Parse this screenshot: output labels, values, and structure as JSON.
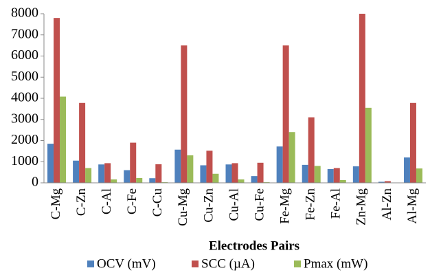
{
  "chart_data": {
    "type": "bar",
    "x_label": "Electrodes Pairs",
    "categories": [
      "C-Mg",
      "C-Zn",
      "C-Al",
      "C-Fe",
      "C-Cu",
      "Cu-Mg",
      "Cu-Zn",
      "Cu-Al",
      "Cu-Fe",
      "Fe-Mg",
      "Fe-Zn",
      "Fe-Al",
      "Zn-Mg",
      "Al-Zn",
      "Al-Mg"
    ],
    "series": [
      {
        "name": "OCV (mV)",
        "color": "#4f81bd",
        "values": [
          1850,
          1050,
          870,
          600,
          220,
          1570,
          830,
          870,
          320,
          1720,
          850,
          650,
          780,
          50,
          1200
        ]
      },
      {
        "name": "SCC (µA)",
        "color": "#c0504d",
        "values": [
          7800,
          3780,
          930,
          1900,
          880,
          6500,
          1520,
          930,
          950,
          6500,
          3100,
          700,
          8000,
          80,
          3780
        ]
      },
      {
        "name": "Pmax (mW)",
        "color": "#9bbb59",
        "values": [
          4080,
          700,
          160,
          230,
          30,
          1300,
          430,
          160,
          30,
          2400,
          800,
          130,
          3550,
          10,
          680
        ]
      }
    ],
    "ylim": [
      0,
      8000
    ],
    "yticks": [
      0,
      1000,
      2000,
      3000,
      4000,
      5000,
      6000,
      7000,
      8000
    ],
    "grid": false,
    "legend": "bottom"
  }
}
